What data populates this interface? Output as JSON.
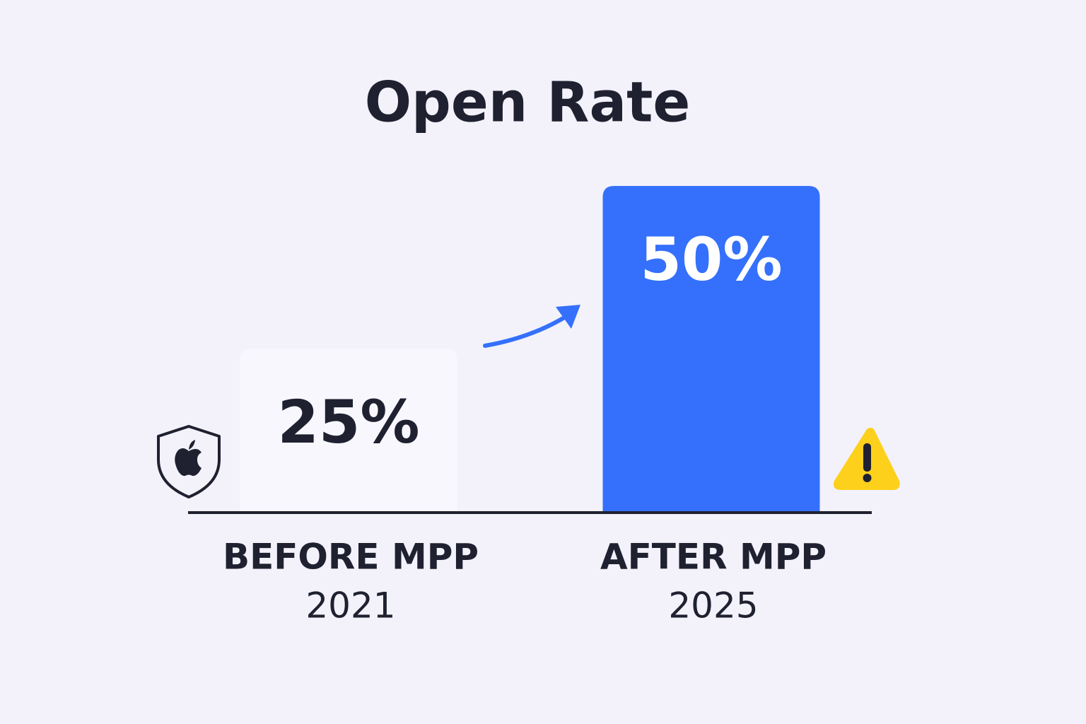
{
  "chart_data": {
    "type": "bar",
    "title": "Open Rate",
    "categories": [
      "BEFORE MPP",
      "AFTER MPP"
    ],
    "years": [
      "2021",
      "2025"
    ],
    "values": [
      25,
      50
    ],
    "value_labels": [
      "25%",
      "50%"
    ],
    "colors": [
      "#f8f7fe",
      "#3470fb"
    ]
  }
}
